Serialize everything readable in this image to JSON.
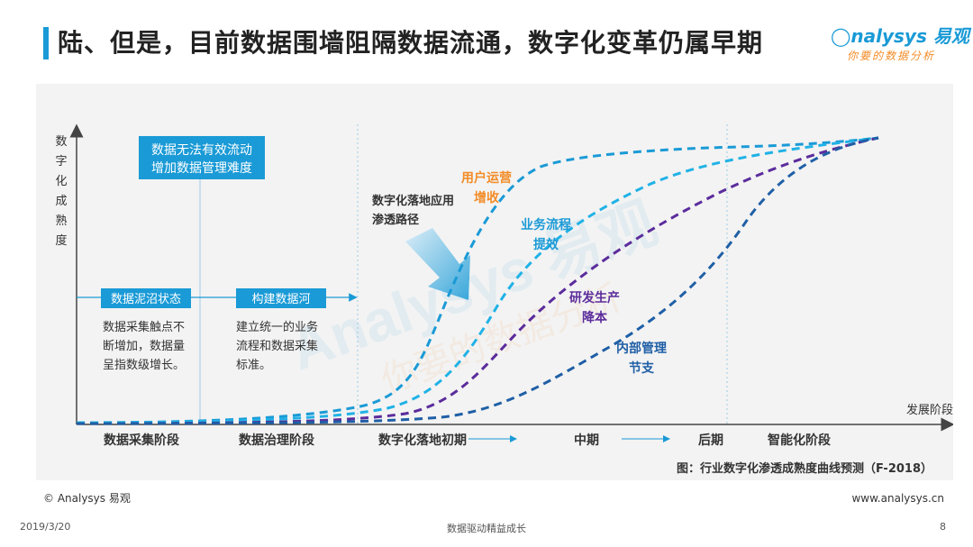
{
  "header": {
    "title": "陆、但是，目前数据围墙阻隔数据流通，数字化变革仍属早期",
    "logo_text": "nalysys 易观",
    "logo_slogan": "你要的数据分析"
  },
  "chart_data": {
    "type": "line",
    "title": "",
    "caption": "图：行业数字化渗透成熟度曲线预测（F-2018）",
    "ylabel": "数字化成熟度",
    "xlabel": "发展阶段",
    "stages": [
      "数据采集阶段",
      "数据治理阶段",
      "数字化落地初期",
      "中期",
      "后期",
      "智能化阶段"
    ],
    "stage_notes": [
      {
        "tag": "数据泥沼状态",
        "text": "数据采集触点不断增加，数据量呈指数级增长。"
      },
      {
        "tag": "构建数据河",
        "text": "建立统一的业务流程和数据采集标准。"
      }
    ],
    "callout": "数据无法有效流动\n增加数据管理难度",
    "path_label": "数字化落地应用\n渗透路径",
    "series": [
      {
        "name": "用户运营\n增收",
        "color": "#1a9ad6"
      },
      {
        "name": "业务流程\n提效",
        "color": "#20b2e6"
      },
      {
        "name": "研发生产\n降本",
        "color": "#5b2c9c"
      },
      {
        "name": "内部管理\n节支",
        "color": "#1f5fa6"
      }
    ],
    "label_colors": {
      "orange": "#f28c28",
      "blue": "#1a9ad6",
      "purple": "#5b2c9c",
      "navy": "#1f5fa6"
    }
  },
  "footer": {
    "copyright": "© Analysys 易观",
    "website": "www.analysys.cn",
    "date": "2019/3/20",
    "center": "数据驱动精益成长",
    "page": "8"
  }
}
